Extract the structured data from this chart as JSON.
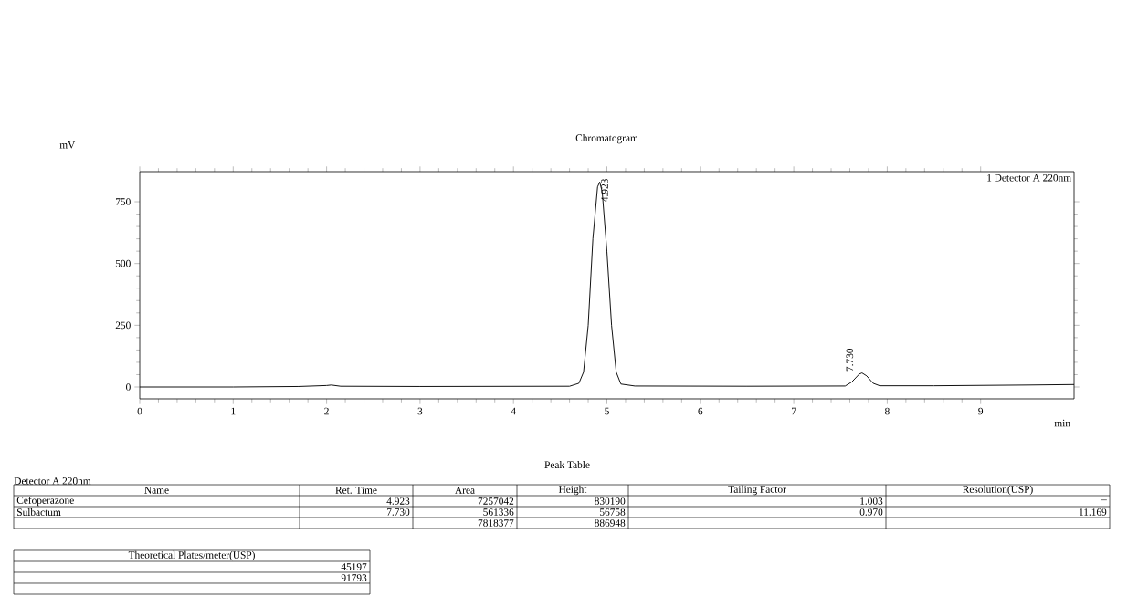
{
  "chart_data": {
    "type": "line",
    "title": "Chromatogram",
    "xlabel": "min",
    "ylabel": "mV",
    "x": [
      0,
      1.0,
      1.7,
      2.0,
      2.05,
      2.15,
      3.0,
      4.6,
      4.7,
      4.75,
      4.8,
      4.85,
      4.9,
      4.923,
      4.95,
      5.0,
      5.05,
      5.1,
      5.15,
      5.3,
      6.5,
      7.55,
      7.62,
      7.7,
      7.73,
      7.78,
      7.85,
      7.92,
      8.5,
      9.5,
      10
    ],
    "values": [
      0,
      0,
      2,
      6,
      8,
      3,
      2,
      3,
      15,
      60,
      250,
      600,
      810,
      830,
      790,
      550,
      250,
      60,
      12,
      4,
      3,
      4,
      20,
      52,
      57,
      45,
      15,
      5,
      5,
      8,
      10
    ],
    "color": "#000000",
    "xlim": [
      0,
      10
    ],
    "ylim": [
      -48,
      872
    ],
    "xticks": [
      0,
      1,
      2,
      3,
      4,
      5,
      6,
      7,
      8,
      9
    ],
    "yticks": [
      0,
      250,
      500,
      750
    ],
    "annotations": [
      "1 Detector A 220nm",
      {
        "text": "4.923",
        "x": 4.923,
        "y": 830
      },
      {
        "text": "7.730",
        "x": 7.73,
        "y": 57
      },
      "Peak Table",
      "Detector A 220nm",
      "Name",
      "Ret. Time",
      "Area",
      "Height",
      "Tailing Factor",
      "Resolution(USP)",
      "Cefoperazone",
      "4.923",
      "7257042",
      "830190",
      "1.003",
      "–",
      "Sulbactum",
      "7.730",
      "561336",
      "56758",
      "0.970",
      "11.169",
      "7818377",
      "886948",
      "Theoretical Plates/meter(USP)",
      "45197",
      "91793"
    ]
  }
}
